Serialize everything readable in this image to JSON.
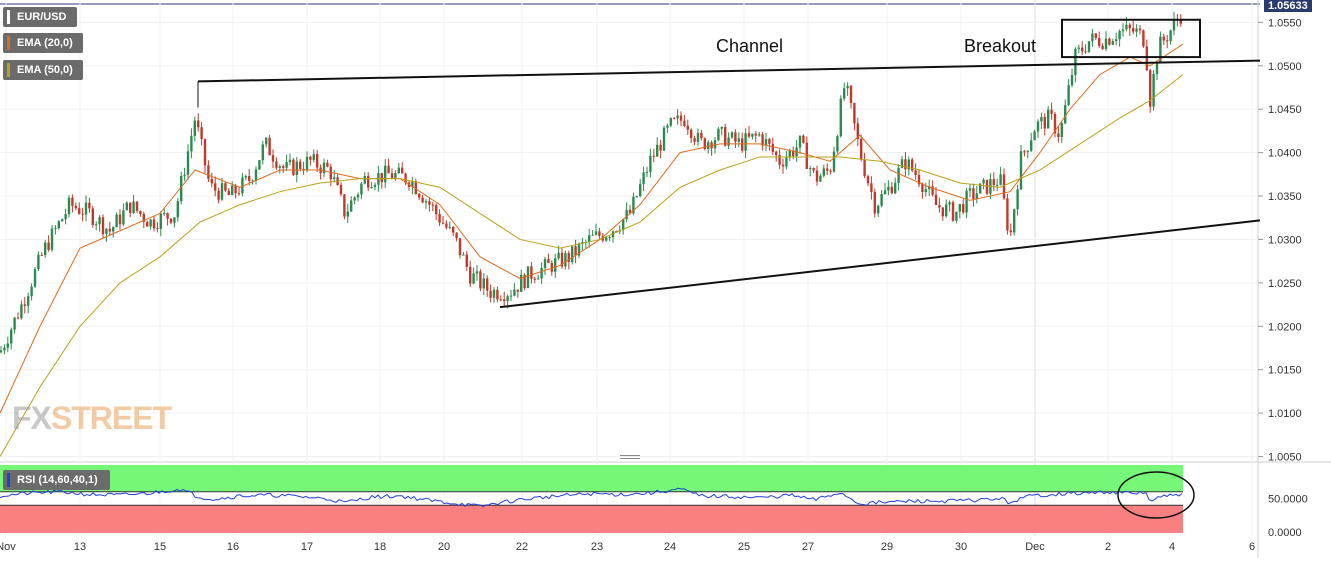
{
  "legend": {
    "symbol": "EUR/USD",
    "ema20": "EMA (20,0)",
    "ema50": "EMA (50,0)",
    "rsi": "RSI (14,60,40,1)"
  },
  "colors": {
    "bull": "#2d8a4e",
    "bear": "#c0392b",
    "ema20": "#e06a1e",
    "ema50": "#b8a21a",
    "rsi_line": "#1f3fd6",
    "rsi_upper_zone": "#77f777",
    "rsi_lower_zone": "#f98080",
    "price_tag": "#2a3a6e"
  },
  "watermark": {
    "fx": "FX",
    "street": "STREET"
  },
  "current_price": "1.05633",
  "chart_data": [
    {
      "type": "candlestick",
      "x_ticks": [
        "Nov",
        "13",
        "15",
        "16",
        "17",
        "18",
        "20",
        "22",
        "23",
        "24",
        "25",
        "27",
        "29",
        "30",
        "Dec",
        "2",
        "4",
        "6"
      ],
      "y_ticks": [
        "1.0550",
        "1.0500",
        "1.0450",
        "1.0400",
        "1.0350",
        "1.0300",
        "1.0250",
        "1.0200",
        "1.0150",
        "1.0100",
        "1.0050"
      ],
      "ylim": [
        1.0046,
        1.057
      ],
      "annotations": [
        "Channel",
        "Breakout"
      ],
      "close_path": [
        [
          0,
          1.017
        ],
        [
          20,
          1.022
        ],
        [
          45,
          1.029
        ],
        [
          70,
          1.034
        ],
        [
          90,
          1.033
        ],
        [
          110,
          1.031
        ],
        [
          130,
          1.034
        ],
        [
          150,
          1.032
        ],
        [
          175,
          1.033
        ],
        [
          195,
          1.044
        ],
        [
          210,
          1.036
        ],
        [
          230,
          1.035
        ],
        [
          250,
          1.037
        ],
        [
          265,
          1.041
        ],
        [
          285,
          1.038
        ],
        [
          310,
          1.039
        ],
        [
          330,
          1.038
        ],
        [
          345,
          1.033
        ],
        [
          365,
          1.037
        ],
        [
          390,
          1.0375
        ],
        [
          410,
          1.037
        ],
        [
          430,
          1.034
        ],
        [
          455,
          1.03
        ],
        [
          470,
          1.026
        ],
        [
          490,
          1.024
        ],
        [
          510,
          1.024
        ],
        [
          530,
          1.026
        ],
        [
          550,
          1.027
        ],
        [
          570,
          1.028
        ],
        [
          590,
          1.03
        ],
        [
          610,
          1.031
        ],
        [
          630,
          1.033
        ],
        [
          650,
          1.039
        ],
        [
          670,
          1.043
        ],
        [
          685,
          1.044
        ],
        [
          700,
          1.041
        ],
        [
          720,
          1.042
        ],
        [
          740,
          1.041
        ],
        [
          760,
          1.042
        ],
        [
          780,
          1.039
        ],
        [
          800,
          1.041
        ],
        [
          815,
          1.037
        ],
        [
          830,
          1.038
        ],
        [
          845,
          1.048
        ],
        [
          860,
          1.04
        ],
        [
          875,
          1.034
        ],
        [
          890,
          1.036
        ],
        [
          905,
          1.039
        ],
        [
          920,
          1.037
        ],
        [
          935,
          1.034
        ],
        [
          955,
          1.033
        ],
        [
          970,
          1.035
        ],
        [
          985,
          1.036
        ],
        [
          1000,
          1.037
        ],
        [
          1010,
          1.03
        ],
        [
          1020,
          1.039
        ],
        [
          1035,
          1.043
        ],
        [
          1050,
          1.044
        ],
        [
          1060,
          1.042
        ],
        [
          1075,
          1.051
        ],
        [
          1090,
          1.053
        ],
        [
          1105,
          1.053
        ],
        [
          1120,
          1.054
        ],
        [
          1135,
          1.054
        ],
        [
          1145,
          1.053
        ],
        [
          1150,
          1.046
        ],
        [
          1158,
          1.052
        ],
        [
          1170,
          1.054
        ],
        [
          1183,
          1.0563
        ]
      ],
      "series": [
        {
          "name": "EMA (20,0)",
          "points": [
            [
              0,
              1.01
            ],
            [
              40,
              1.02
            ],
            [
              80,
              1.029
            ],
            [
              120,
              1.031
            ],
            [
              160,
              1.033
            ],
            [
              195,
              1.038
            ],
            [
              240,
              1.036
            ],
            [
              280,
              1.038
            ],
            [
              320,
              1.038
            ],
            [
              360,
              1.037
            ],
            [
              400,
              1.037
            ],
            [
              440,
              1.034
            ],
            [
              480,
              1.028
            ],
            [
              520,
              1.0255
            ],
            [
              560,
              1.027
            ],
            [
              600,
              1.03
            ],
            [
              640,
              1.034
            ],
            [
              680,
              1.04
            ],
            [
              720,
              1.041
            ],
            [
              760,
              1.041
            ],
            [
              800,
              1.04
            ],
            [
              830,
              1.039
            ],
            [
              860,
              1.042
            ],
            [
              890,
              1.038
            ],
            [
              930,
              1.036
            ],
            [
              970,
              1.0345
            ],
            [
              1010,
              1.0355
            ],
            [
              1040,
              1.04
            ],
            [
              1070,
              1.045
            ],
            [
              1100,
              1.049
            ],
            [
              1130,
              1.051
            ],
            [
              1150,
              1.05
            ],
            [
              1183,
              1.0525
            ]
          ]
        },
        {
          "name": "EMA (50,0)",
          "points": [
            [
              0,
              1.005
            ],
            [
              40,
              1.013
            ],
            [
              80,
              1.02
            ],
            [
              120,
              1.025
            ],
            [
              160,
              1.028
            ],
            [
              200,
              1.032
            ],
            [
              240,
              1.034
            ],
            [
              280,
              1.0355
            ],
            [
              320,
              1.0365
            ],
            [
              360,
              1.037
            ],
            [
              400,
              1.037
            ],
            [
              440,
              1.036
            ],
            [
              480,
              1.033
            ],
            [
              520,
              1.03
            ],
            [
              560,
              1.029
            ],
            [
              600,
              1.03
            ],
            [
              640,
              1.032
            ],
            [
              680,
              1.036
            ],
            [
              720,
              1.038
            ],
            [
              760,
              1.0395
            ],
            [
              800,
              1.0395
            ],
            [
              840,
              1.0395
            ],
            [
              880,
              1.039
            ],
            [
              920,
              1.038
            ],
            [
              960,
              1.0365
            ],
            [
              1000,
              1.036
            ],
            [
              1040,
              1.038
            ],
            [
              1080,
              1.041
            ],
            [
              1120,
              1.044
            ],
            [
              1150,
              1.046
            ],
            [
              1183,
              1.049
            ]
          ]
        }
      ],
      "channel_lines": [
        {
          "name": "upper",
          "from": [
            198,
            1.0482
          ],
          "to": [
            1260,
            1.0506
          ]
        },
        {
          "name": "lower",
          "from": [
            500,
            1.0222
          ],
          "to": [
            1260,
            1.0322
          ]
        }
      ],
      "breakout_box": {
        "from": [
          1062,
          1.0553
        ],
        "to": [
          1200,
          1.051
        ]
      }
    },
    {
      "type": "line",
      "name": "RSI (14,60,40,1)",
      "y_ticks": [
        "50.0000",
        "0.0000"
      ],
      "ylim": [
        0,
        100
      ],
      "bands": [
        [
          60,
          100
        ],
        [
          0,
          40
        ]
      ],
      "values": [
        [
          0,
          54
        ],
        [
          30,
          58
        ],
        [
          60,
          60
        ],
        [
          90,
          56
        ],
        [
          120,
          55
        ],
        [
          150,
          58
        ],
        [
          180,
          64
        ],
        [
          200,
          52
        ],
        [
          215,
          49
        ],
        [
          240,
          54
        ],
        [
          270,
          55
        ],
        [
          300,
          53
        ],
        [
          330,
          49
        ],
        [
          345,
          44
        ],
        [
          370,
          52
        ],
        [
          400,
          54
        ],
        [
          430,
          47
        ],
        [
          460,
          42
        ],
        [
          480,
          38
        ],
        [
          500,
          44
        ],
        [
          530,
          50
        ],
        [
          560,
          54
        ],
        [
          590,
          57
        ],
        [
          620,
          56
        ],
        [
          650,
          58
        ],
        [
          680,
          64
        ],
        [
          700,
          54
        ],
        [
          730,
          53
        ],
        [
          760,
          51
        ],
        [
          790,
          55
        ],
        [
          815,
          48
        ],
        [
          840,
          59
        ],
        [
          860,
          42
        ],
        [
          880,
          44
        ],
        [
          910,
          46
        ],
        [
          940,
          46
        ],
        [
          970,
          47
        ],
        [
          1000,
          50
        ],
        [
          1010,
          44
        ],
        [
          1030,
          54
        ],
        [
          1060,
          57
        ],
        [
          1090,
          58
        ],
        [
          1110,
          60
        ],
        [
          1135,
          57
        ],
        [
          1145,
          60
        ],
        [
          1150,
          46
        ],
        [
          1160,
          52
        ],
        [
          1183,
          56
        ]
      ]
    }
  ]
}
